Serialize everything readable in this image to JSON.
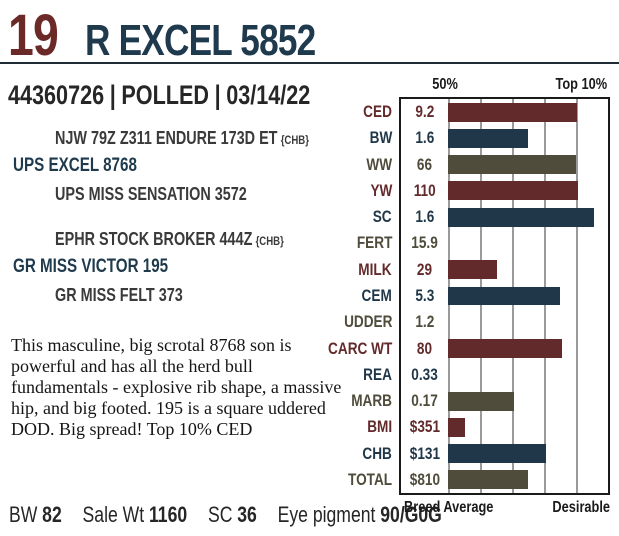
{
  "theme": {
    "lot_color": "#6b2a28",
    "title_color": "#1f3a4d",
    "rule_color": "#1c2b35",
    "chart_border": "#1a1a1a",
    "gridline_color": "#9a9a9a"
  },
  "header": {
    "lot_number": "19",
    "title": "R EXCEL 5852"
  },
  "registration": {
    "reg_number": "44360726",
    "separator": "|",
    "horn_status": "POLLED",
    "birth_date": "03/14/22"
  },
  "pedigree": {
    "paternal": {
      "top": "NJW 79Z Z311 ENDURE 173D ET",
      "top_tag": "{CHB}",
      "name": "UPS EXCEL 8768",
      "bottom": "UPS MISS SENSATION 3572"
    },
    "maternal": {
      "top": "EPHR STOCK BROKER 444Z",
      "top_tag": "{CHB}",
      "name": "GR MISS VICTOR 195",
      "bottom": "GR MISS FELT 373"
    }
  },
  "description": "This masculine, big scrotal 8768 son is powerful and has all the herd bull fundamentals - explosive rib shape, a massive hip, and big footed. 195 is a square uddered DOD. Big spread! Top 10% CED",
  "stats": [
    {
      "label": "BW",
      "value": "82"
    },
    {
      "label": "Sale Wt",
      "value": "1160"
    },
    {
      "label": "SC",
      "value": "36"
    },
    {
      "label": "Eye pigment",
      "value": "90/G0G"
    }
  ],
  "chart_data": {
    "type": "bar",
    "header_left": "50%",
    "header_right": "Top 10%",
    "footer_left": "Breed Average",
    "footer_right": "Desirable",
    "colors": {
      "maroon": "#632a2b",
      "navy": "#1f3748",
      "olive": "#4f4c3c"
    },
    "axis": {
      "gridline_percents": [
        0,
        20,
        40,
        60,
        80
      ],
      "bar_area_range_percent": [
        0,
        100
      ]
    },
    "rows": [
      {
        "label": "CED",
        "value": "9.2",
        "percent": 80.5,
        "color": "maroon"
      },
      {
        "label": "BW",
        "value": "1.6",
        "percent": 50,
        "color": "navy"
      },
      {
        "label": "WW",
        "value": "66",
        "percent": 80,
        "color": "olive"
      },
      {
        "label": "YW",
        "value": "110",
        "percent": 81,
        "color": "maroon"
      },
      {
        "label": "SC",
        "value": "1.6",
        "percent": 91,
        "color": "navy"
      },
      {
        "label": "FERT",
        "value": "15.9",
        "percent": 0,
        "color": "olive"
      },
      {
        "label": "MILK",
        "value": "29",
        "percent": 30.5,
        "color": "maroon"
      },
      {
        "label": "CEM",
        "value": "5.3",
        "percent": 70,
        "color": "navy"
      },
      {
        "label": "UDDER",
        "value": "1.2",
        "percent": 0,
        "color": "olive"
      },
      {
        "label": "CARC WT",
        "value": "80",
        "percent": 71,
        "color": "maroon"
      },
      {
        "label": "REA",
        "value": "0.33",
        "percent": 0,
        "color": "navy"
      },
      {
        "label": "MARB",
        "value": "0.17",
        "percent": 41,
        "color": "olive"
      },
      {
        "label": "BMI",
        "value": "$351",
        "percent": 10.4,
        "color": "maroon"
      },
      {
        "label": "CHB",
        "value": "$131",
        "percent": 61,
        "color": "navy"
      },
      {
        "label": "TOTAL",
        "value": "$810",
        "percent": 50,
        "color": "olive"
      }
    ]
  }
}
